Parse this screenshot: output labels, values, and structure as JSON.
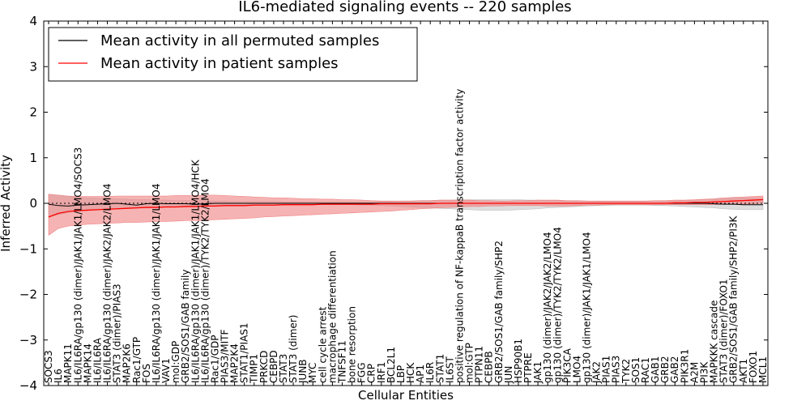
{
  "chart_data": {
    "type": "line",
    "title": "IL6-mediated signaling events -- 220 samples",
    "xlabel": "Cellular Entities",
    "ylabel": "Inferred Activity",
    "ylim": [
      -4,
      4
    ],
    "yticks": [
      -4,
      -3,
      -2,
      -1,
      0,
      1,
      2,
      3,
      4
    ],
    "ytick_labels": [
      "−4",
      "−3",
      "−2",
      "−1",
      "0",
      "1",
      "2",
      "3",
      "4"
    ],
    "legend_position": "top-left",
    "categories": [
      "SOCS3",
      "IL6",
      "MAPK11",
      "IL6/IL6RA/gp130 (dimer)/JAK1/JAK1/LMO4/SOCS3",
      "MAPK14",
      "IL6/IL6RA",
      "IL6/IL6RA/gp130 (dimer)/JAK2/JAK2/LMO4",
      "STAT3 (dimer)/PIAS3",
      "MAP2K6",
      "Rac1/GTP",
      "FOS",
      "IL6/IL6RA/gp130 (dimer)/JAK1/JAK1/LMO4",
      "VAV1",
      "mol:GDP",
      "GRB2/SOS1/GAB family",
      "IL6/IL6RA/gp130 (dimer)/JAK1/JAK1/LMO4/HCK",
      "IL6/IL6RA/gp130 (dimer)/TYK2/TYK2/LMO4",
      "Rac1/GDP",
      "PIAS3/MITF",
      "MAP2K4",
      "STAT1/PIAS1",
      "TIMP1",
      "PRKCD",
      "CEBPD",
      "STAT3",
      "STAT3 (dimer)",
      "JUNB",
      "MYC",
      "cell cycle arrest",
      "macrophage differentiation",
      "TNFSF11",
      "bone resorption",
      "FGG",
      "CRP",
      "IRF1",
      "BCL2L1",
      "LBP",
      "HCK",
      "AP1",
      "IL6R",
      "STAT1",
      "IL6ST",
      "positive regulation of NF-kappaB transcription factor activity",
      "mol:GTP",
      "PTPN11",
      "CEBPB",
      "GRB2/SOS1/GAB family/SHP2",
      "JUN",
      "HSP90B1",
      "PTPRE",
      "JAK1",
      "gp130 (dimer)/JAK2/JAK2/LMO4",
      "gp130 (dimer)/TYK2/TYK2/LMO4",
      "PIK3CA",
      "LMO4",
      "gp130 (dimer)/JAK1/JAK1/LMO4",
      "JAK2",
      "PIAS1",
      "PIAS3",
      "TYK2",
      "SOS1",
      "RAC1",
      "GAB1",
      "GRB2",
      "GAB2",
      "PIK3R1",
      "A2M",
      "PI3K",
      "MAPKKK cascade",
      "STAT3 (dimer)/FOXO1",
      "GRB2/SOS1/GAB family/SHP2/PI3K",
      "AKT1",
      "FOXO1",
      "MCL1"
    ],
    "series": [
      {
        "name": "Mean activity in all permuted samples",
        "color": "#000000",
        "values": [
          -0.02,
          -0.05,
          -0.06,
          -0.04,
          -0.03,
          -0.02,
          -0.01,
          0.0,
          -0.02,
          -0.04,
          -0.01,
          0.0,
          -0.01,
          -0.01,
          -0.01,
          -0.02,
          -0.01,
          0.0,
          0.0,
          0.0,
          0.0,
          0.0,
          0.0,
          0.0,
          0.0,
          0.0,
          0.0,
          0.0,
          0.0,
          0.0,
          0.0,
          0.0,
          0.0,
          0.0,
          0.0,
          0.0,
          0.0,
          0.0,
          0.0,
          0.0,
          0.0,
          0.0,
          0.0,
          0.0,
          0.0,
          0.0,
          0.0,
          0.0,
          0.0,
          0.0,
          0.0,
          0.0,
          0.0,
          0.0,
          0.0,
          0.0,
          0.0,
          0.0,
          0.0,
          0.0,
          0.0,
          0.0,
          0.0,
          0.0,
          0.0,
          0.0,
          0.0,
          0.0,
          -0.01,
          -0.02,
          -0.02,
          -0.03,
          -0.03,
          -0.03
        ],
        "band_lower": [
          -0.3,
          -0.25,
          -0.2,
          -0.18,
          -0.16,
          -0.14,
          -0.12,
          -0.12,
          -0.1,
          -0.1,
          -0.08,
          -0.08,
          -0.07,
          -0.06,
          -0.06,
          -0.06,
          -0.05,
          -0.05,
          -0.04,
          -0.04,
          -0.04,
          -0.04,
          -0.04,
          -0.04,
          -0.03,
          -0.03,
          -0.03,
          -0.03,
          -0.03,
          -0.03,
          -0.03,
          -0.03,
          -0.04,
          -0.04,
          -0.05,
          -0.06,
          -0.07,
          -0.08,
          -0.09,
          -0.1,
          -0.11,
          -0.12,
          -0.13,
          -0.14,
          -0.15,
          -0.15,
          -0.15,
          -0.15,
          -0.14,
          -0.13,
          -0.12,
          -0.1,
          -0.09,
          -0.08,
          -0.07,
          -0.06,
          -0.05,
          -0.05,
          -0.04,
          -0.04,
          -0.04,
          -0.04,
          -0.05,
          -0.05,
          -0.06,
          -0.07,
          -0.08,
          -0.09,
          -0.1,
          -0.12,
          -0.13,
          -0.14,
          -0.14,
          -0.14
        ],
        "band_upper": [
          0.2,
          0.18,
          0.15,
          0.13,
          0.12,
          0.11,
          0.1,
          0.1,
          0.09,
          0.08,
          0.08,
          0.07,
          0.07,
          0.06,
          0.06,
          0.06,
          0.05,
          0.05,
          0.05,
          0.04,
          0.04,
          0.04,
          0.04,
          0.04,
          0.03,
          0.03,
          0.03,
          0.03,
          0.03,
          0.03,
          0.03,
          0.03,
          0.03,
          0.03,
          0.04,
          0.04,
          0.05,
          0.05,
          0.06,
          0.06,
          0.07,
          0.07,
          0.08,
          0.08,
          0.08,
          0.08,
          0.08,
          0.08,
          0.08,
          0.07,
          0.07,
          0.06,
          0.06,
          0.05,
          0.05,
          0.05,
          0.04,
          0.04,
          0.04,
          0.04,
          0.04,
          0.04,
          0.04,
          0.05,
          0.05,
          0.06,
          0.07,
          0.08,
          0.09,
          0.1,
          0.11,
          0.12,
          0.12,
          0.12
        ]
      },
      {
        "name": "Mean activity in patient samples",
        "color": "#ff0000",
        "values": [
          -0.3,
          -0.22,
          -0.18,
          -0.16,
          -0.15,
          -0.14,
          -0.13,
          -0.12,
          -0.11,
          -0.1,
          -0.09,
          -0.09,
          -0.08,
          -0.08,
          -0.07,
          -0.07,
          -0.06,
          -0.06,
          -0.05,
          -0.05,
          -0.05,
          -0.04,
          -0.04,
          -0.04,
          -0.03,
          -0.03,
          -0.03,
          -0.03,
          -0.02,
          -0.02,
          -0.02,
          -0.02,
          -0.02,
          -0.02,
          -0.01,
          -0.01,
          -0.01,
          -0.01,
          -0.01,
          -0.01,
          0.0,
          0.0,
          0.0,
          0.0,
          0.0,
          0.0,
          0.0,
          0.0,
          0.0,
          0.0,
          0.0,
          0.0,
          0.0,
          0.0,
          0.0,
          0.0,
          0.0,
          0.0,
          0.0,
          0.0,
          0.0,
          0.0,
          0.0,
          0.0,
          0.01,
          0.01,
          0.02,
          0.02,
          0.03,
          0.04,
          0.05,
          0.06,
          0.07,
          0.08
        ],
        "band_lower": [
          -0.7,
          -0.55,
          -0.5,
          -0.48,
          -0.46,
          -0.45,
          -0.44,
          -0.43,
          -0.42,
          -0.42,
          -0.41,
          -0.4,
          -0.4,
          -0.39,
          -0.38,
          -0.38,
          -0.37,
          -0.36,
          -0.35,
          -0.34,
          -0.33,
          -0.32,
          -0.3,
          -0.29,
          -0.28,
          -0.27,
          -0.26,
          -0.25,
          -0.24,
          -0.23,
          -0.22,
          -0.21,
          -0.2,
          -0.19,
          -0.18,
          -0.17,
          -0.15,
          -0.14,
          -0.12,
          -0.11,
          -0.1,
          -0.09,
          -0.08,
          -0.07,
          -0.07,
          -0.06,
          -0.06,
          -0.05,
          -0.05,
          -0.05,
          -0.05,
          -0.06,
          -0.06,
          -0.06,
          -0.05,
          -0.04,
          -0.04,
          -0.03,
          -0.03,
          -0.03,
          -0.03,
          -0.03,
          -0.03,
          -0.03,
          -0.03,
          -0.03,
          -0.03,
          -0.03,
          -0.03,
          -0.02,
          -0.02,
          -0.02,
          -0.01,
          0.0
        ],
        "band_upper": [
          0.2,
          0.18,
          0.16,
          0.15,
          0.15,
          0.15,
          0.15,
          0.16,
          0.16,
          0.16,
          0.16,
          0.16,
          0.16,
          0.17,
          0.17,
          0.17,
          0.18,
          0.18,
          0.17,
          0.16,
          0.15,
          0.14,
          0.13,
          0.12,
          0.12,
          0.11,
          0.1,
          0.1,
          0.09,
          0.09,
          0.08,
          0.08,
          0.07,
          0.06,
          0.05,
          0.05,
          0.05,
          0.05,
          0.06,
          0.06,
          0.07,
          0.07,
          0.07,
          0.07,
          0.06,
          0.06,
          0.05,
          0.05,
          0.06,
          0.06,
          0.07,
          0.07,
          0.07,
          0.06,
          0.06,
          0.05,
          0.05,
          0.05,
          0.05,
          0.05,
          0.05,
          0.05,
          0.06,
          0.06,
          0.07,
          0.07,
          0.08,
          0.09,
          0.1,
          0.12,
          0.13,
          0.14,
          0.15,
          0.16
        ]
      }
    ]
  }
}
